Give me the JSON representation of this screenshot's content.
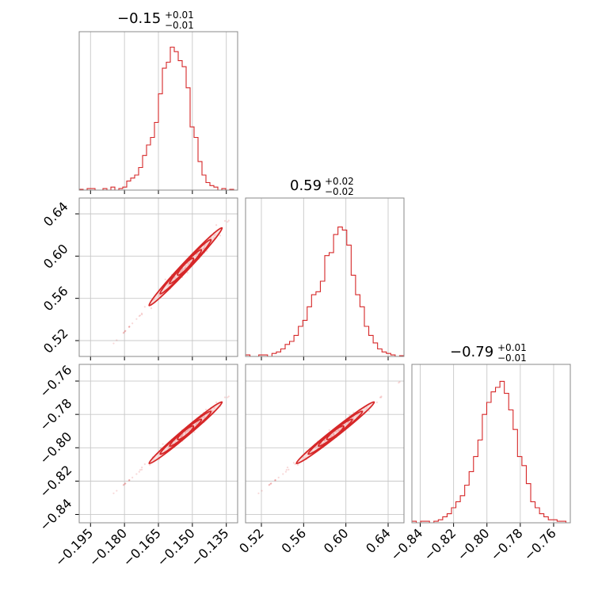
{
  "chart_data": {
    "type": "corner",
    "colors": {
      "series": "#d62728",
      "grid": "#c8c8c8",
      "frame": "#888888"
    },
    "grid": true,
    "parameters": [
      {
        "title_main": "−0.15",
        "title_plus": "+0.01",
        "title_minus": "−0.01",
        "range": [
          -0.2,
          -0.13
        ],
        "ticks": [
          -0.195,
          -0.18,
          -0.165,
          -0.15,
          -0.135
        ],
        "tick_labels": [
          "−0.195",
          "−0.180",
          "−0.165",
          "−0.150",
          "−0.135"
        ],
        "median": -0.153,
        "sigma": 0.007,
        "hist_bins": [
          0.005,
          0.0,
          0.01,
          0.01,
          0.0,
          0.0,
          0.01,
          0.0,
          0.02,
          0.0,
          0.01,
          0.02,
          0.06,
          0.08,
          0.1,
          0.15,
          0.23,
          0.3,
          0.35,
          0.45,
          0.64,
          0.81,
          0.85,
          0.95,
          0.92,
          0.86,
          0.82,
          0.68,
          0.42,
          0.35,
          0.19,
          0.1,
          0.05,
          0.03,
          0.02,
          0.0,
          0.01,
          0.0,
          0.005,
          0.0
        ]
      },
      {
        "title_main": "0.59",
        "title_plus": "+0.02",
        "title_minus": "−0.02",
        "range": [
          0.505,
          0.655
        ],
        "ticks": [
          0.52,
          0.56,
          0.6,
          0.64
        ],
        "tick_labels": [
          "0.52",
          "0.56",
          "0.60",
          "0.64"
        ],
        "median": 0.59,
        "sigma": 0.016,
        "hist_bins": [
          0.01,
          0.0,
          0.0,
          0.01,
          0.01,
          0.0,
          0.02,
          0.03,
          0.05,
          0.08,
          0.1,
          0.14,
          0.2,
          0.24,
          0.33,
          0.41,
          0.43,
          0.5,
          0.67,
          0.69,
          0.81,
          0.86,
          0.84,
          0.74,
          0.54,
          0.41,
          0.33,
          0.2,
          0.14,
          0.09,
          0.05,
          0.03,
          0.02,
          0.01,
          0.0,
          0.005
        ]
      },
      {
        "title_main": "−0.79",
        "title_plus": "+0.01",
        "title_minus": "−0.01",
        "range": [
          -0.845,
          -0.75
        ],
        "ticks": [
          -0.84,
          -0.82,
          -0.8,
          -0.78,
          -0.76
        ],
        "tick_labels": [
          "−0.84",
          "−0.82",
          "−0.80",
          "−0.78",
          "−0.76"
        ],
        "median": -0.791,
        "sigma": 0.008,
        "hist_bins": [
          0.01,
          0.0,
          0.01,
          0.01,
          0.0,
          0.01,
          0.02,
          0.04,
          0.06,
          0.1,
          0.14,
          0.18,
          0.25,
          0.34,
          0.44,
          0.55,
          0.72,
          0.8,
          0.87,
          0.9,
          0.94,
          0.86,
          0.75,
          0.62,
          0.44,
          0.38,
          0.26,
          0.14,
          0.1,
          0.06,
          0.04,
          0.02,
          0.02,
          0.01,
          0.01,
          0.0
        ]
      }
    ],
    "y_tick_labels": {
      "param2": [
        "0.52",
        "0.56",
        "0.60",
        "0.64"
      ],
      "param3": [
        "−0.84",
        "−0.82",
        "−0.80",
        "−0.78",
        "−0.76"
      ]
    }
  }
}
